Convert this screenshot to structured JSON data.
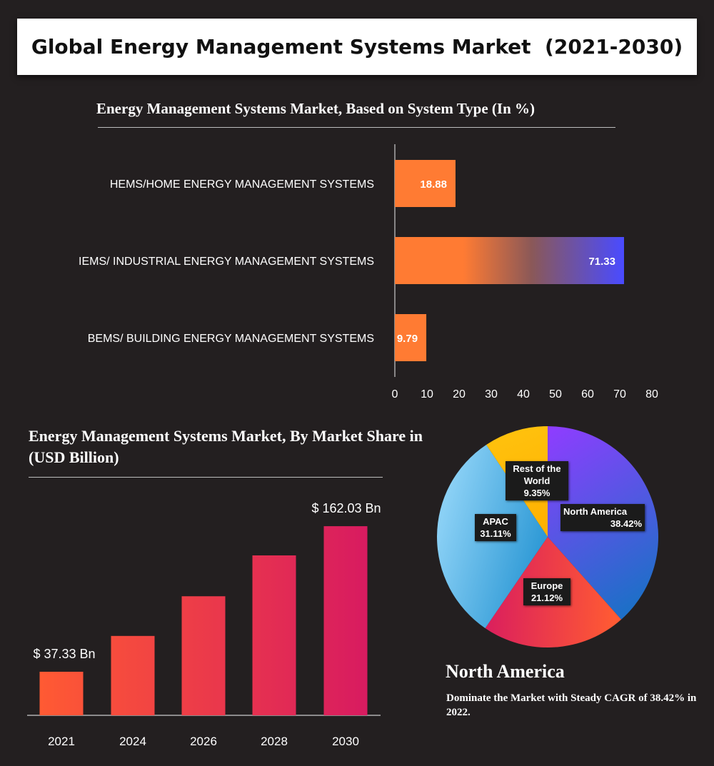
{
  "title": "Global Energy Management Systems Market  (2021-2030)",
  "colors": {
    "background": "#231f20",
    "orange": "#ff7b33",
    "blue": "#4a4bff",
    "red": "#f0433a",
    "magenta": "#d81b60",
    "purple": "#8e3dff",
    "cyan": "#4fb3e8",
    "yellow": "#ffc20e"
  },
  "chart_data": [
    {
      "type": "bar",
      "orientation": "horizontal",
      "title": "Energy Management Systems Market, Based on System Type (In %)",
      "categories": [
        "HEMS/HOME  ENERGY  MANAGEMENT SYSTEMS",
        "IEMS/ INDUSTRIAL ENERGY MANAGEMENT SYSTEMS",
        "BEMS/ BUILDING  ENERGY MANAGEMENT SYSTEMS"
      ],
      "values": [
        18.88,
        71.33,
        9.79
      ],
      "value_labels": [
        "18.88",
        "71.33",
        "9.79"
      ],
      "xlim": [
        0,
        80
      ],
      "xticks": [
        "0",
        "10",
        "20",
        "30",
        "40",
        "50",
        "60",
        "70",
        "80"
      ],
      "grid": false
    },
    {
      "type": "bar",
      "title": "Energy Management Systems Market, By Market Share in (USD Billion)",
      "categories": [
        "2021",
        "2024",
        "2026",
        "2028",
        "2030"
      ],
      "values": [
        37.33,
        68,
        102,
        137,
        162.03
      ],
      "value_labels": [
        "$ 37.33 Bn",
        "",
        "",
        "",
        "$ 162.03 Bn"
      ],
      "ylim": [
        0,
        180
      ],
      "grid": false
    },
    {
      "type": "pie",
      "slices": [
        {
          "label": "North America",
          "value": 38.42,
          "value_label": "38.42%",
          "color": "#8e3dff"
        },
        {
          "label": "Europe",
          "value": 21.12,
          "value_label": "21.12%",
          "color": "#f0433a"
        },
        {
          "label": "APAC",
          "value": 31.11,
          "value_label": "31.11%",
          "color": "#4fb3e8"
        },
        {
          "label": "Rest of the World",
          "value": 9.35,
          "value_label": "9.35%",
          "color": "#ffc20e"
        }
      ]
    }
  ],
  "highlight": {
    "heading": "North America",
    "description": "Dominate the Market with Steady CAGR of 38.42% in 2022."
  }
}
